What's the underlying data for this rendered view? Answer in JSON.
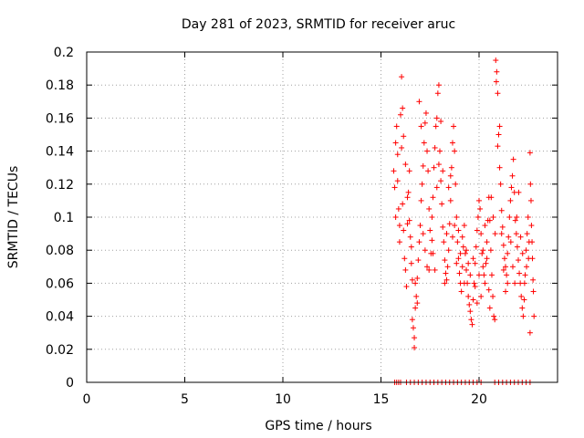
{
  "chart_data": {
    "type": "scatter",
    "title": "Day 281 of 2023, SRMTID for receiver aruc",
    "xlabel": "GPS time / hours",
    "ylabel": "SRMTID / TECUs",
    "xlim": [
      0,
      24
    ],
    "ylim": [
      0,
      0.2
    ],
    "x_ticks": [
      0,
      5,
      10,
      15,
      20
    ],
    "y_ticks": [
      0,
      0.02,
      0.04,
      0.06,
      0.08,
      0.1,
      0.12,
      0.14,
      0.16,
      0.18,
      0.2
    ],
    "x_tick_labels": [
      "0",
      "5",
      "10",
      "15",
      "20"
    ],
    "y_tick_labels": [
      "0",
      "0.02",
      "0.04",
      "0.06",
      "0.08",
      "0.1",
      "0.12",
      "0.14",
      "0.16",
      "0.18",
      "0.2"
    ],
    "grid": true,
    "marker": "+",
    "series": [
      {
        "name": "SRMTID",
        "color": "#ff0000",
        "points": [
          [
            15.65,
            0.128
          ],
          [
            15.7,
            0.118
          ],
          [
            15.75,
            0.145
          ],
          [
            15.8,
            0.155
          ],
          [
            15.85,
            0.138
          ],
          [
            15.9,
            0.105
          ],
          [
            15.95,
            0.095
          ],
          [
            16.0,
            0.162
          ],
          [
            16.05,
            0.142
          ],
          [
            16.1,
            0.108
          ],
          [
            16.15,
            0.092
          ],
          [
            16.2,
            0.075
          ],
          [
            16.25,
            0.068
          ],
          [
            16.3,
            0.058
          ],
          [
            16.35,
            0.096
          ],
          [
            16.4,
            0.115
          ],
          [
            16.45,
            0.128
          ],
          [
            16.5,
            0.088
          ],
          [
            16.55,
            0.072
          ],
          [
            16.6,
            0.062
          ],
          [
            15.75,
            0.1
          ],
          [
            15.85,
            0.122
          ],
          [
            15.95,
            0.085
          ],
          [
            16.05,
            0.185
          ],
          [
            16.1,
            0.166
          ],
          [
            16.15,
            0.149
          ],
          [
            16.25,
            0.132
          ],
          [
            16.35,
            0.112
          ],
          [
            16.45,
            0.098
          ],
          [
            16.55,
            0.082
          ],
          [
            16.6,
            0.038
          ],
          [
            16.65,
            0.033
          ],
          [
            16.7,
            0.027
          ],
          [
            16.7,
            0.021
          ],
          [
            16.75,
            0.045
          ],
          [
            16.8,
            0.052
          ],
          [
            16.85,
            0.063
          ],
          [
            16.9,
            0.074
          ],
          [
            16.95,
            0.085
          ],
          [
            17.0,
            0.095
          ],
          [
            17.05,
            0.11
          ],
          [
            17.1,
            0.12
          ],
          [
            17.15,
            0.131
          ],
          [
            17.2,
            0.145
          ],
          [
            17.25,
            0.157
          ],
          [
            17.3,
            0.163
          ],
          [
            17.35,
            0.14
          ],
          [
            17.4,
            0.128
          ],
          [
            17.45,
            0.105
          ],
          [
            17.5,
            0.092
          ],
          [
            16.75,
            0.06
          ],
          [
            16.85,
            0.048
          ],
          [
            16.95,
            0.17
          ],
          [
            17.05,
            0.155
          ],
          [
            17.15,
            0.09
          ],
          [
            17.25,
            0.08
          ],
          [
            17.35,
            0.07
          ],
          [
            17.45,
            0.068
          ],
          [
            17.55,
            0.078
          ],
          [
            17.6,
            0.086
          ],
          [
            17.6,
            0.1
          ],
          [
            17.65,
            0.112
          ],
          [
            17.7,
            0.13
          ],
          [
            17.75,
            0.142
          ],
          [
            17.8,
            0.155
          ],
          [
            17.85,
            0.16
          ],
          [
            17.9,
            0.175
          ],
          [
            17.95,
            0.18
          ],
          [
            18.0,
            0.14
          ],
          [
            18.05,
            0.122
          ],
          [
            18.1,
            0.108
          ],
          [
            18.15,
            0.094
          ],
          [
            18.2,
            0.085
          ],
          [
            18.25,
            0.074
          ],
          [
            18.3,
            0.066
          ],
          [
            18.35,
            0.062
          ],
          [
            18.4,
            0.07
          ],
          [
            18.45,
            0.08
          ],
          [
            18.5,
            0.096
          ],
          [
            18.55,
            0.11
          ],
          [
            17.65,
            0.078
          ],
          [
            17.75,
            0.068
          ],
          [
            17.85,
            0.118
          ],
          [
            17.95,
            0.132
          ],
          [
            18.05,
            0.158
          ],
          [
            18.15,
            0.128
          ],
          [
            18.25,
            0.06
          ],
          [
            18.35,
            0.09
          ],
          [
            18.45,
            0.118
          ],
          [
            18.55,
            0.125
          ],
          [
            18.6,
            0.13
          ],
          [
            18.65,
            0.145
          ],
          [
            18.7,
            0.155
          ],
          [
            18.75,
            0.14
          ],
          [
            18.8,
            0.12
          ],
          [
            18.85,
            0.1
          ],
          [
            18.9,
            0.085
          ],
          [
            18.95,
            0.075
          ],
          [
            19.0,
            0.066
          ],
          [
            19.05,
            0.06
          ],
          [
            19.1,
            0.055
          ],
          [
            19.15,
            0.07
          ],
          [
            19.2,
            0.082
          ],
          [
            19.25,
            0.095
          ],
          [
            19.3,
            0.078
          ],
          [
            19.35,
            0.068
          ],
          [
            19.4,
            0.06
          ],
          [
            19.45,
            0.052
          ],
          [
            19.5,
            0.047
          ],
          [
            19.55,
            0.043
          ],
          [
            18.65,
            0.088
          ],
          [
            18.75,
            0.095
          ],
          [
            18.85,
            0.072
          ],
          [
            18.95,
            0.092
          ],
          [
            19.05,
            0.078
          ],
          [
            19.15,
            0.088
          ],
          [
            19.25,
            0.06
          ],
          [
            19.35,
            0.08
          ],
          [
            19.45,
            0.072
          ],
          [
            19.55,
            0.065
          ],
          [
            19.6,
            0.038
          ],
          [
            19.65,
            0.035
          ],
          [
            19.7,
            0.05
          ],
          [
            19.75,
            0.06
          ],
          [
            19.8,
            0.072
          ],
          [
            19.85,
            0.082
          ],
          [
            19.9,
            0.092
          ],
          [
            19.95,
            0.1
          ],
          [
            20.0,
            0.11
          ],
          [
            20.05,
            0.105
          ],
          [
            20.1,
            0.09
          ],
          [
            20.15,
            0.078
          ],
          [
            20.2,
            0.07
          ],
          [
            20.25,
            0.065
          ],
          [
            20.3,
            0.06
          ],
          [
            20.35,
            0.072
          ],
          [
            20.4,
            0.085
          ],
          [
            20.45,
            0.098
          ],
          [
            20.5,
            0.112
          ],
          [
            20.55,
            0.098
          ],
          [
            19.7,
            0.075
          ],
          [
            19.8,
            0.058
          ],
          [
            19.9,
            0.048
          ],
          [
            20.0,
            0.065
          ],
          [
            20.1,
            0.052
          ],
          [
            20.2,
            0.08
          ],
          [
            20.3,
            0.095
          ],
          [
            20.4,
            0.075
          ],
          [
            20.5,
            0.056
          ],
          [
            20.55,
            0.045
          ],
          [
            20.6,
            0.08
          ],
          [
            20.65,
            0.065
          ],
          [
            20.7,
            0.052
          ],
          [
            20.75,
            0.04
          ],
          [
            20.8,
            0.038
          ],
          [
            20.85,
            0.195
          ],
          [
            20.9,
            0.188
          ],
          [
            20.95,
            0.175
          ],
          [
            21.0,
            0.15
          ],
          [
            21.05,
            0.13
          ],
          [
            21.1,
            0.12
          ],
          [
            21.15,
            0.104
          ],
          [
            21.2,
            0.094
          ],
          [
            21.25,
            0.083
          ],
          [
            21.3,
            0.075
          ],
          [
            21.35,
            0.07
          ],
          [
            21.4,
            0.065
          ],
          [
            21.45,
            0.078
          ],
          [
            21.5,
            0.088
          ],
          [
            21.55,
            0.1
          ],
          [
            20.62,
            0.112
          ],
          [
            20.72,
            0.1
          ],
          [
            20.82,
            0.09
          ],
          [
            20.88,
            0.182
          ],
          [
            20.95,
            0.143
          ],
          [
            21.05,
            0.155
          ],
          [
            21.15,
            0.09
          ],
          [
            21.25,
            0.068
          ],
          [
            21.35,
            0.055
          ],
          [
            21.45,
            0.06
          ],
          [
            21.6,
            0.11
          ],
          [
            21.65,
            0.118
          ],
          [
            21.7,
            0.125
          ],
          [
            21.75,
            0.135
          ],
          [
            21.8,
            0.115
          ],
          [
            21.85,
            0.098
          ],
          [
            21.9,
            0.09
          ],
          [
            21.95,
            0.082
          ],
          [
            22.0,
            0.074
          ],
          [
            22.05,
            0.066
          ],
          [
            22.1,
            0.06
          ],
          [
            22.15,
            0.052
          ],
          [
            22.2,
            0.045
          ],
          [
            22.25,
            0.04
          ],
          [
            22.3,
            0.05
          ],
          [
            22.35,
            0.065
          ],
          [
            22.4,
            0.08
          ],
          [
            22.45,
            0.09
          ],
          [
            22.5,
            0.1
          ],
          [
            22.55,
            0.085
          ],
          [
            21.62,
            0.085
          ],
          [
            21.72,
            0.07
          ],
          [
            21.82,
            0.06
          ],
          [
            21.92,
            0.1
          ],
          [
            22.02,
            0.115
          ],
          [
            22.12,
            0.088
          ],
          [
            22.22,
            0.078
          ],
          [
            22.32,
            0.06
          ],
          [
            22.42,
            0.07
          ],
          [
            22.52,
            0.075
          ],
          [
            22.6,
            0.139
          ],
          [
            22.62,
            0.12
          ],
          [
            22.65,
            0.11
          ],
          [
            22.67,
            0.095
          ],
          [
            22.7,
            0.085
          ],
          [
            22.72,
            0.075
          ],
          [
            22.75,
            0.062
          ],
          [
            22.77,
            0.055
          ],
          [
            22.8,
            0.04
          ],
          [
            22.6,
            0.03
          ],
          [
            15.7,
            0
          ],
          [
            15.8,
            0
          ],
          [
            15.9,
            0
          ],
          [
            16.0,
            0
          ],
          [
            16.3,
            0
          ],
          [
            16.5,
            0
          ],
          [
            16.7,
            0
          ],
          [
            16.9,
            0
          ],
          [
            17.1,
            0
          ],
          [
            17.3,
            0
          ],
          [
            17.5,
            0
          ],
          [
            17.7,
            0
          ],
          [
            17.9,
            0
          ],
          [
            18.1,
            0
          ],
          [
            18.3,
            0
          ],
          [
            18.5,
            0
          ],
          [
            18.7,
            0
          ],
          [
            18.9,
            0
          ],
          [
            19.1,
            0
          ],
          [
            19.3,
            0
          ],
          [
            19.5,
            0
          ],
          [
            19.7,
            0
          ],
          [
            19.9,
            0
          ],
          [
            20.1,
            0
          ],
          [
            20.8,
            0
          ],
          [
            21.0,
            0
          ],
          [
            21.2,
            0
          ],
          [
            21.4,
            0
          ],
          [
            21.6,
            0
          ],
          [
            21.8,
            0
          ],
          [
            22.0,
            0
          ],
          [
            22.2,
            0
          ],
          [
            22.4,
            0
          ],
          [
            22.6,
            0
          ]
        ]
      }
    ]
  }
}
